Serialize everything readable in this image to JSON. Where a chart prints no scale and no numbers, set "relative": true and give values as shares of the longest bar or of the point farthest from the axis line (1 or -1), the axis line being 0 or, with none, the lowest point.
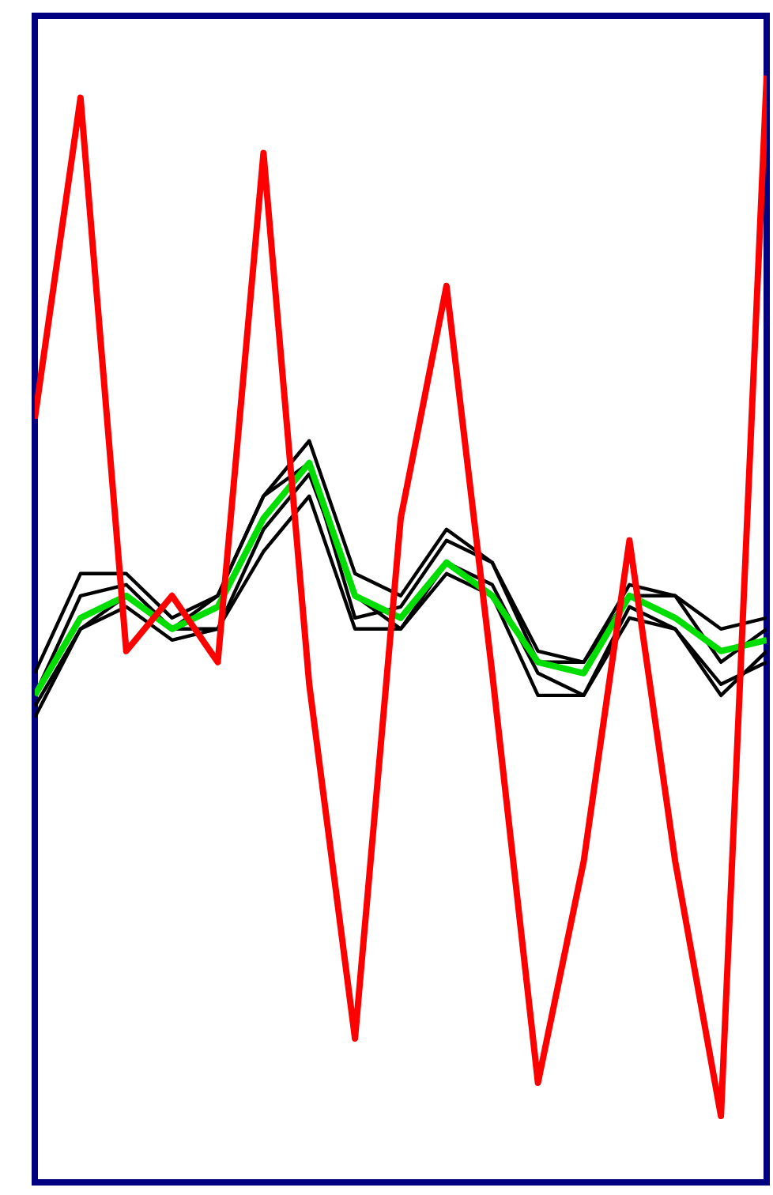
{
  "chart_data": {
    "type": "line",
    "relative": true,
    "categories": [
      null,
      null,
      null,
      null,
      null,
      null,
      null,
      null,
      null,
      null,
      null,
      null,
      null,
      null,
      null,
      null,
      null
    ],
    "series": [
      {
        "color": "#000000",
        "values": [
          0.46,
          0.55,
          0.55,
          0.51,
          0.53,
          0.62,
          0.67,
          0.55,
          0.53,
          0.59,
          0.56,
          0.48,
          0.47,
          0.54,
          0.53,
          0.5,
          0.51
        ]
      },
      {
        "color": "#000000",
        "values": [
          0.42,
          0.5,
          0.52,
          0.49,
          0.5,
          0.57,
          0.62,
          0.5,
          0.5,
          0.55,
          0.53,
          0.44,
          0.44,
          0.52,
          0.5,
          0.44,
          0.48
        ]
      },
      {
        "color": "#000000",
        "values": [
          0.44,
          0.53,
          0.54,
          0.5,
          0.53,
          0.62,
          0.65,
          0.51,
          0.52,
          0.58,
          0.56,
          0.47,
          0.47,
          0.53,
          0.53,
          0.47,
          0.5
        ]
      },
      {
        "color": "#000000",
        "values": [
          0.43,
          0.5,
          0.53,
          0.5,
          0.5,
          0.59,
          0.64,
          0.53,
          0.5,
          0.56,
          0.54,
          0.46,
          0.44,
          0.51,
          0.5,
          0.45,
          0.47
        ]
      },
      {
        "color": "#00dd00",
        "values": [
          0.44,
          0.51,
          0.53,
          0.5,
          0.52,
          0.6,
          0.65,
          0.53,
          0.51,
          0.56,
          0.53,
          0.47,
          0.46,
          0.53,
          0.51,
          0.48,
          0.49
        ]
      },
      {
        "color": "#ff0000",
        "values": [
          0.69,
          0.98,
          0.48,
          0.53,
          0.47,
          0.93,
          0.45,
          0.13,
          0.6,
          0.81,
          0.46,
          0.09,
          0.29,
          0.58,
          0.29,
          0.06,
          1.0
        ]
      }
    ]
  }
}
